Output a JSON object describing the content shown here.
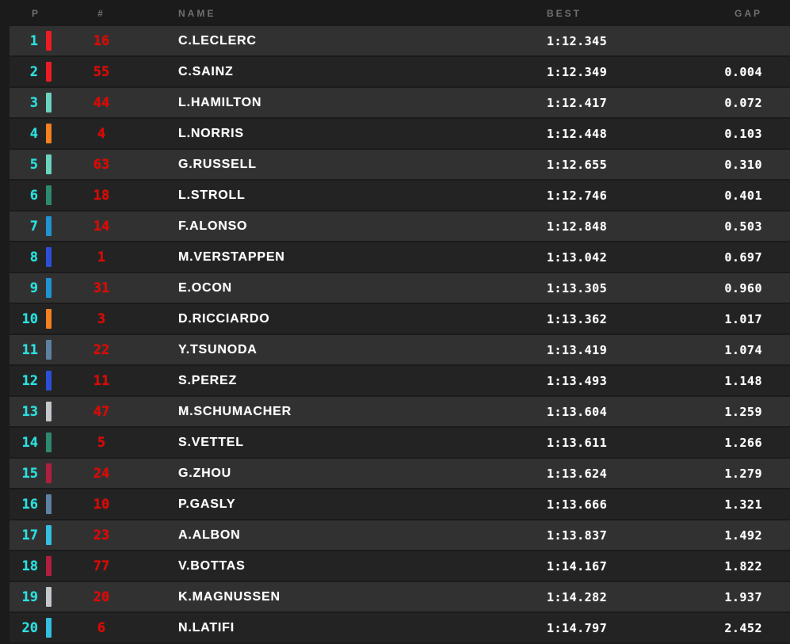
{
  "table": {
    "headers": {
      "position": "P",
      "car_number": "#",
      "name": "NAME",
      "best": "BEST",
      "gap": "GAP"
    },
    "rows": [
      {
        "position": "1",
        "car_number": "16",
        "name": "C.LECLERC",
        "team": "ferrari",
        "best": "1:12.345",
        "gap": ""
      },
      {
        "position": "2",
        "car_number": "55",
        "name": "C.SAINZ",
        "team": "ferrari",
        "best": "1:12.349",
        "gap": "0.004"
      },
      {
        "position": "3",
        "car_number": "44",
        "name": "L.HAMILTON",
        "team": "mercedes",
        "best": "1:12.417",
        "gap": "0.072"
      },
      {
        "position": "4",
        "car_number": "4",
        "name": "L.NORRIS",
        "team": "mclaren",
        "best": "1:12.448",
        "gap": "0.103"
      },
      {
        "position": "5",
        "car_number": "63",
        "name": "G.RUSSELL",
        "team": "mercedes",
        "best": "1:12.655",
        "gap": "0.310"
      },
      {
        "position": "6",
        "car_number": "18",
        "name": "L.STROLL",
        "team": "aston-martin",
        "best": "1:12.746",
        "gap": "0.401"
      },
      {
        "position": "7",
        "car_number": "14",
        "name": "F.ALONSO",
        "team": "alpine",
        "best": "1:12.848",
        "gap": "0.503"
      },
      {
        "position": "8",
        "car_number": "1",
        "name": "M.VERSTAPPEN",
        "team": "red-bull",
        "best": "1:13.042",
        "gap": "0.697"
      },
      {
        "position": "9",
        "car_number": "31",
        "name": "E.OCON",
        "team": "alpine",
        "best": "1:13.305",
        "gap": "0.960"
      },
      {
        "position": "10",
        "car_number": "3",
        "name": "D.RICCIARDO",
        "team": "mclaren",
        "best": "1:13.362",
        "gap": "1.017"
      },
      {
        "position": "11",
        "car_number": "22",
        "name": "Y.TSUNODA",
        "team": "alphatauri",
        "best": "1:13.419",
        "gap": "1.074"
      },
      {
        "position": "12",
        "car_number": "11",
        "name": "S.PEREZ",
        "team": "red-bull",
        "best": "1:13.493",
        "gap": "1.148"
      },
      {
        "position": "13",
        "car_number": "47",
        "name": "M.SCHUMACHER",
        "team": "haas",
        "best": "1:13.604",
        "gap": "1.259"
      },
      {
        "position": "14",
        "car_number": "5",
        "name": "S.VETTEL",
        "team": "aston-martin",
        "best": "1:13.611",
        "gap": "1.266"
      },
      {
        "position": "15",
        "car_number": "24",
        "name": "G.ZHOU",
        "team": "alfa-romeo",
        "best": "1:13.624",
        "gap": "1.279"
      },
      {
        "position": "16",
        "car_number": "10",
        "name": "P.GASLY",
        "team": "alphatauri",
        "best": "1:13.666",
        "gap": "1.321"
      },
      {
        "position": "17",
        "car_number": "23",
        "name": "A.ALBON",
        "team": "williams",
        "best": "1:13.837",
        "gap": "1.492"
      },
      {
        "position": "18",
        "car_number": "77",
        "name": "V.BOTTAS",
        "team": "alfa-romeo",
        "best": "1:14.167",
        "gap": "1.822"
      },
      {
        "position": "19",
        "car_number": "20",
        "name": "K.MAGNUSSEN",
        "team": "haas",
        "best": "1:14.282",
        "gap": "1.937"
      },
      {
        "position": "20",
        "car_number": "6",
        "name": "N.LATIFI",
        "team": "williams",
        "best": "1:14.797",
        "gap": "2.452"
      }
    ]
  },
  "team_colors": {
    "ferrari": "#ed1c24",
    "mercedes": "#6cd3bf",
    "mclaren": "#f58020",
    "aston-martin": "#2d8a6e",
    "alpine": "#2293d1",
    "red-bull": "#2b4fd8",
    "alphatauri": "#5d82a1",
    "haas": "#c3c7ca",
    "alfa-romeo": "#b01f3d",
    "williams": "#33bfdf"
  },
  "ui_colors": {
    "background": "#1b1b1b",
    "row_odd": "#313131",
    "row_even": "#232323",
    "position_text": "#29e2e2",
    "car_number_text": "#e10600",
    "main_text": "#ffffff",
    "header_text": "#707070"
  }
}
